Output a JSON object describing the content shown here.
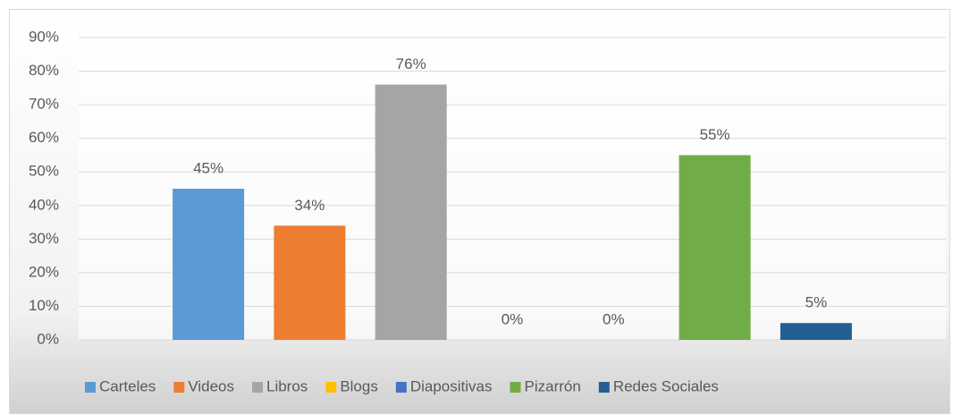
{
  "chart_data": {
    "type": "bar",
    "categories": [
      null
    ],
    "series": [
      {
        "name": "Carteles",
        "color": "#5b9bd5",
        "values": [
          45
        ],
        "value_labels": [
          "45%"
        ]
      },
      {
        "name": "Videos",
        "color": "#ed7d31",
        "values": [
          34
        ],
        "value_labels": [
          "34%"
        ]
      },
      {
        "name": "Libros",
        "color": "#a5a5a5",
        "values": [
          76
        ],
        "value_labels": [
          "76%"
        ]
      },
      {
        "name": "Blogs",
        "color": "#ffc000",
        "values": [
          0
        ],
        "value_labels": [
          "0%"
        ]
      },
      {
        "name": "Diapositivas",
        "color": "#4472c4",
        "values": [
          0
        ],
        "value_labels": [
          "0%"
        ]
      },
      {
        "name": "Pizarrón",
        "color": "#70ad47",
        "values": [
          55
        ],
        "value_labels": [
          "55%"
        ]
      },
      {
        "name": "Redes Sociales",
        "color": "#255e91",
        "values": [
          5
        ],
        "value_labels": [
          "5%"
        ]
      }
    ],
    "ylim": [
      0,
      90
    ],
    "yticks": [
      {
        "value": 0,
        "label": "0%"
      },
      {
        "value": 10,
        "label": "10%"
      },
      {
        "value": 20,
        "label": "20%"
      },
      {
        "value": 30,
        "label": "30%"
      },
      {
        "value": 40,
        "label": "40%"
      },
      {
        "value": 50,
        "label": "50%"
      },
      {
        "value": 60,
        "label": "60%"
      },
      {
        "value": 70,
        "label": "70%"
      },
      {
        "value": 80,
        "label": "80%"
      },
      {
        "value": 90,
        "label": "90%"
      }
    ],
    "grid": true,
    "legend": "bottom"
  }
}
